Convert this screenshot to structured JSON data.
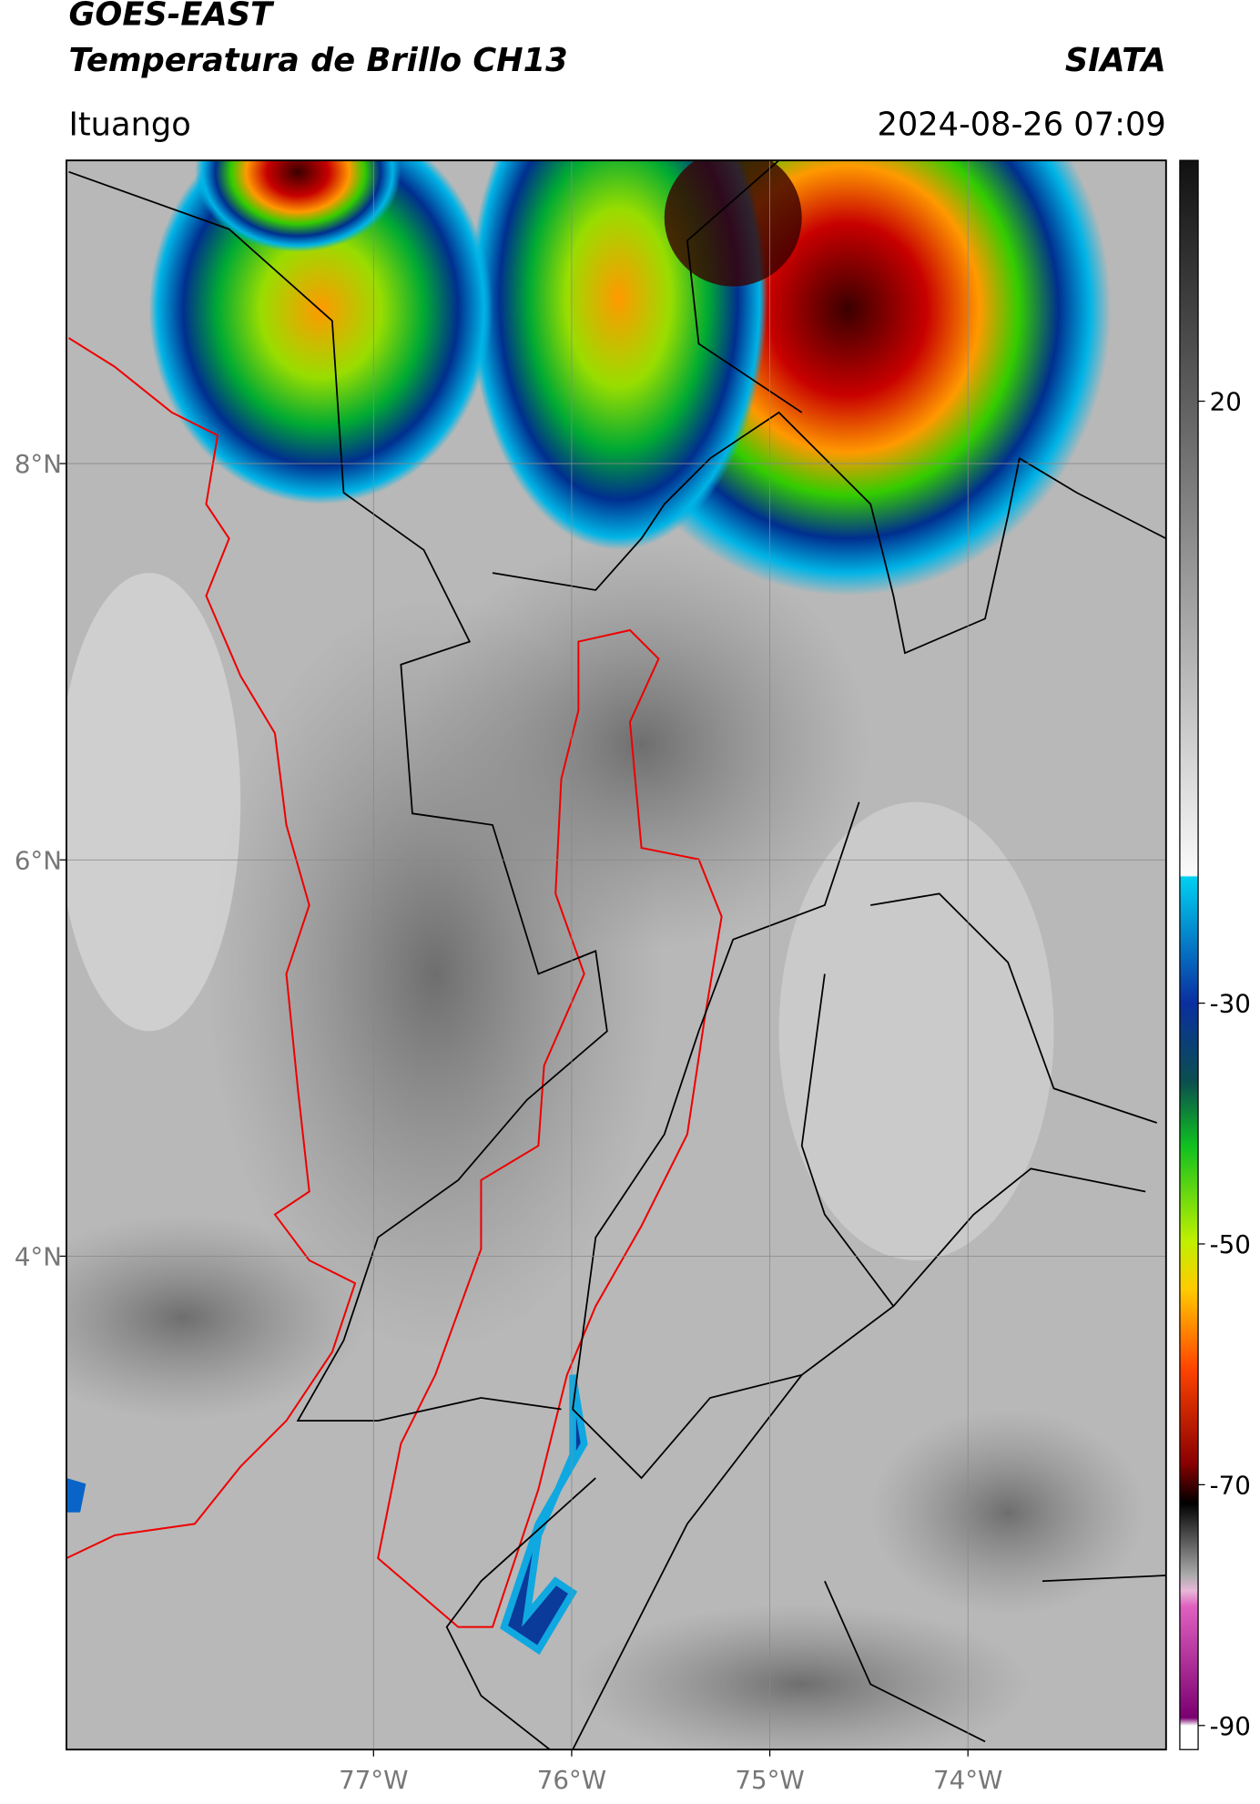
{
  "header": {
    "satellite": "GOES-EAST",
    "product": "Temperatura de Brillo CH13",
    "agency": "SIATA",
    "region": "Ituango",
    "datetime": "2024-08-26 07:09"
  },
  "map": {
    "xlim": [
      -78.55,
      -73.0
    ],
    "ylim": [
      1.51,
      9.53
    ],
    "xticks": [
      {
        "value": -77,
        "label": "77°W"
      },
      {
        "value": -76,
        "label": "76°W"
      },
      {
        "value": -75,
        "label": "75°W"
      },
      {
        "value": -74,
        "label": "74°W"
      }
    ],
    "yticks": [
      {
        "value": 8,
        "label": "8°N"
      },
      {
        "value": 6,
        "label": "6°N"
      },
      {
        "value": 4,
        "label": "4°N"
      }
    ]
  },
  "colorbar": {
    "lim": [
      -92,
      40
    ],
    "ticks": [
      20,
      -30,
      -50,
      -70,
      -90
    ]
  }
}
